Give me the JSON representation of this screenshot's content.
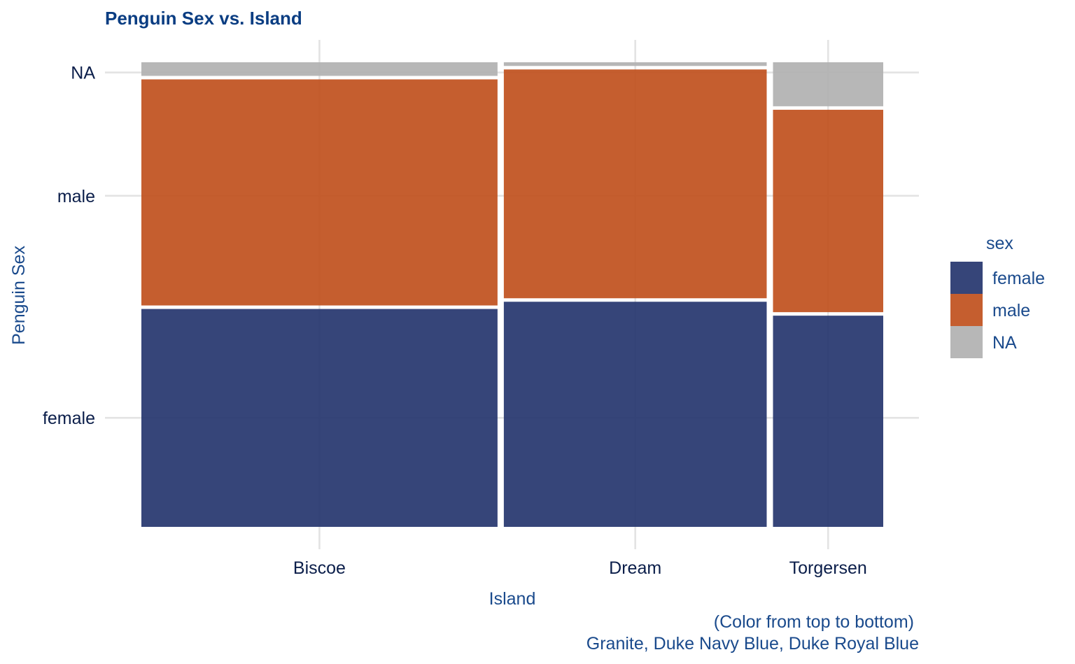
{
  "chart_data": {
    "type": "mosaic",
    "title": "Penguin Sex vs. Island",
    "xlabel": "Island",
    "ylabel": "Penguin Sex",
    "categories": [
      "Biscoe",
      "Dream",
      "Torgersen"
    ],
    "category_counts": [
      168,
      124,
      52
    ],
    "sex_levels": [
      "female",
      "male",
      "NA"
    ],
    "series": [
      {
        "name": "female",
        "values": [
          80,
          61,
          24
        ],
        "color": "#27376f"
      },
      {
        "name": "male",
        "values": [
          83,
          62,
          23
        ],
        "color": "#c1521f"
      },
      {
        "name": "NA",
        "values": [
          5,
          1,
          5
        ],
        "color": "#b2b2b2"
      }
    ],
    "legend": {
      "title": "sex",
      "position": "right",
      "items": [
        "female",
        "male",
        "NA"
      ]
    },
    "caption": [
      "(Color from top to bottom)",
      "Granite, Duke Navy Blue, Duke Royal Blue"
    ],
    "grid": true
  }
}
